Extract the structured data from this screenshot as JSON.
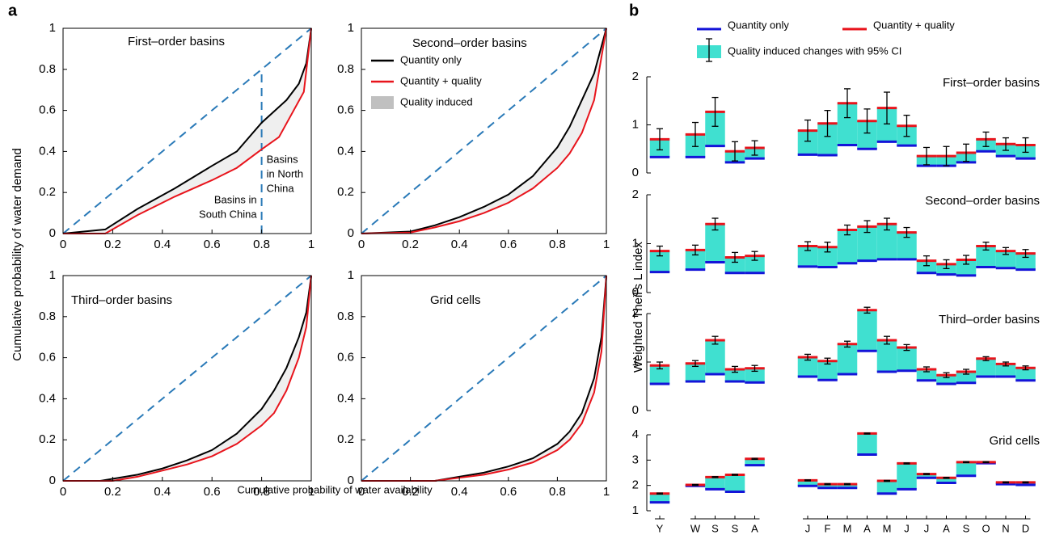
{
  "panel_a": {
    "label": "a",
    "xlabel": "Cumulative probability of water availability",
    "ylabel": "Cumulative probability of water demand"
  },
  "panel_b": {
    "label": "b",
    "ylabel": "Weighted Theil's L index",
    "categories": [
      "Y",
      "W",
      "S",
      "S",
      "A",
      "J",
      "F",
      "M",
      "A",
      "M",
      "J",
      "J",
      "A",
      "S",
      "O",
      "N",
      "D"
    ],
    "legend": [
      {
        "name": "Quantity only",
        "color": "#1414d8"
      },
      {
        "name": "Quantity + quality",
        "color": "#e8141c"
      },
      {
        "name": "Quality induced changes with 95% CI",
        "color": "#40e0d0"
      }
    ]
  },
  "chart_data": [
    {
      "type": "line",
      "title": "First–order basins",
      "xlim": [
        0,
        1
      ],
      "ylim": [
        0,
        1
      ],
      "xticks": [
        0,
        0.2,
        0.4,
        0.6,
        0.8,
        1
      ],
      "yticks": [
        0,
        0.2,
        0.4,
        0.6,
        0.8,
        1
      ],
      "diagonal": {
        "x": [
          0,
          1
        ],
        "values": [
          0,
          1
        ],
        "color": "#2a7ab8"
      },
      "series": [
        {
          "color": "#000000",
          "x": [
            0,
            0.17,
            0.3,
            0.45,
            0.6,
            0.7,
            0.8,
            0.9,
            0.95,
            0.98,
            1
          ],
          "values": [
            0,
            0.02,
            0.12,
            0.22,
            0.33,
            0.4,
            0.54,
            0.65,
            0.73,
            0.83,
            1
          ]
        },
        {
          "color": "#e8141c",
          "x": [
            0,
            0.17,
            0.3,
            0.45,
            0.6,
            0.7,
            0.8,
            0.87,
            0.92,
            0.97,
            1
          ],
          "values": [
            0,
            0,
            0.09,
            0.18,
            0.26,
            0.32,
            0.41,
            0.47,
            0.58,
            0.69,
            1
          ]
        }
      ],
      "shade_color": "#efefef",
      "marker_line": {
        "x": 0.8,
        "y": 0.8
      },
      "annotations": [
        {
          "lines": [
            "Basins in",
            "South China"
          ]
        },
        {
          "lines": [
            "Basins",
            "in North",
            "China"
          ]
        }
      ]
    },
    {
      "type": "line",
      "title": "Second–order basins",
      "xlim": [
        0,
        1
      ],
      "ylim": [
        0,
        1
      ],
      "xticks": [
        0,
        0.2,
        0.4,
        0.6,
        0.8,
        1
      ],
      "yticks": [
        0,
        0.2,
        0.4,
        0.6,
        0.8,
        1
      ],
      "diagonal": {
        "x": [
          0,
          1
        ],
        "values": [
          0,
          1
        ],
        "color": "#2a7ab8"
      },
      "series": [
        {
          "name": "Quantity only",
          "color": "#000000",
          "x": [
            0,
            0.2,
            0.3,
            0.4,
            0.5,
            0.6,
            0.7,
            0.8,
            0.85,
            0.9,
            0.95,
            1
          ],
          "values": [
            0,
            0.01,
            0.04,
            0.08,
            0.13,
            0.19,
            0.28,
            0.42,
            0.52,
            0.65,
            0.78,
            1
          ]
        },
        {
          "name": "Quantity + quality",
          "color": "#e8141c",
          "x": [
            0,
            0.2,
            0.3,
            0.4,
            0.5,
            0.6,
            0.7,
            0.8,
            0.85,
            0.9,
            0.95,
            1
          ],
          "values": [
            0,
            0.005,
            0.03,
            0.06,
            0.1,
            0.15,
            0.22,
            0.32,
            0.39,
            0.49,
            0.65,
            1
          ]
        }
      ],
      "shade_color": "#efefef",
      "shade_name": "Quality induced",
      "shade_legend_color": "#c0c0c0",
      "legend": true
    },
    {
      "type": "line",
      "title": "Third–order basins",
      "xlim": [
        0,
        1
      ],
      "ylim": [
        0,
        1
      ],
      "xticks": [
        0,
        0.2,
        0.4,
        0.6,
        0.8,
        1
      ],
      "yticks": [
        0,
        0.2,
        0.4,
        0.6,
        0.8,
        1
      ],
      "diagonal": {
        "x": [
          0,
          1
        ],
        "values": [
          0,
          1
        ],
        "color": "#2a7ab8"
      },
      "series": [
        {
          "color": "#000000",
          "x": [
            0,
            0.15,
            0.3,
            0.4,
            0.5,
            0.6,
            0.7,
            0.8,
            0.85,
            0.9,
            0.95,
            0.98,
            1
          ],
          "values": [
            0,
            0,
            0.03,
            0.06,
            0.1,
            0.15,
            0.23,
            0.35,
            0.44,
            0.55,
            0.7,
            0.82,
            1
          ]
        },
        {
          "color": "#e8141c",
          "x": [
            0,
            0.2,
            0.3,
            0.4,
            0.5,
            0.6,
            0.7,
            0.8,
            0.85,
            0.9,
            0.95,
            0.98,
            1
          ],
          "values": [
            0,
            0,
            0.02,
            0.05,
            0.08,
            0.12,
            0.18,
            0.27,
            0.33,
            0.44,
            0.6,
            0.75,
            1
          ]
        }
      ],
      "shade_color": "#efefef"
    },
    {
      "type": "line",
      "title": "Grid cells",
      "xlim": [
        0,
        1
      ],
      "ylim": [
        0,
        1
      ],
      "xticks": [
        0,
        0.2,
        0.4,
        0.6,
        0.8,
        1
      ],
      "yticks": [
        0,
        0.2,
        0.4,
        0.6,
        0.8,
        1
      ],
      "diagonal": {
        "x": [
          0,
          1
        ],
        "values": [
          0,
          1
        ],
        "color": "#2a7ab8"
      },
      "series": [
        {
          "color": "#000000",
          "x": [
            0,
            0.3,
            0.4,
            0.5,
            0.6,
            0.7,
            0.8,
            0.85,
            0.9,
            0.95,
            0.98,
            1
          ],
          "values": [
            0,
            0,
            0.02,
            0.04,
            0.07,
            0.11,
            0.18,
            0.24,
            0.33,
            0.5,
            0.7,
            1
          ]
        },
        {
          "color": "#e8141c",
          "x": [
            0,
            0.3,
            0.4,
            0.5,
            0.6,
            0.7,
            0.8,
            0.85,
            0.9,
            0.95,
            0.98,
            1
          ],
          "values": [
            0,
            0,
            0.015,
            0.03,
            0.055,
            0.09,
            0.15,
            0.2,
            0.28,
            0.43,
            0.63,
            1
          ]
        }
      ],
      "shade_color": "#efefef"
    },
    {
      "type": "bar",
      "title": "First–order basins",
      "ylim": [
        0,
        2
      ],
      "yticks": [
        0,
        1,
        2
      ],
      "series": [
        {
          "values": [
            0.33,
            0.33,
            0.56,
            0.22,
            0.3,
            0.38,
            0.37,
            0.58,
            0.5,
            0.65,
            0.57,
            0.15,
            0.15,
            0.22,
            0.45,
            0.35,
            0.3
          ]
        },
        {
          "values": [
            0.7,
            0.8,
            1.27,
            0.45,
            0.52,
            0.88,
            1.03,
            1.45,
            1.08,
            1.35,
            0.98,
            0.35,
            0.35,
            0.42,
            0.7,
            0.6,
            0.58
          ],
          "errors": [
            0.22,
            0.25,
            0.3,
            0.2,
            0.15,
            0.22,
            0.27,
            0.3,
            0.25,
            0.33,
            0.22,
            0.18,
            0.2,
            0.18,
            0.15,
            0.13,
            0.15
          ]
        }
      ]
    },
    {
      "type": "bar",
      "title": "Second–order basins",
      "ylim": [
        0,
        2
      ],
      "yticks": [
        0,
        1,
        2
      ],
      "series": [
        {
          "values": [
            0.42,
            0.47,
            0.62,
            0.4,
            0.4,
            0.53,
            0.52,
            0.6,
            0.65,
            0.68,
            0.68,
            0.4,
            0.37,
            0.35,
            0.52,
            0.5,
            0.47
          ]
        },
        {
          "values": [
            0.85,
            0.87,
            1.4,
            0.72,
            0.75,
            0.95,
            0.93,
            1.28,
            1.35,
            1.4,
            1.23,
            0.65,
            0.58,
            0.67,
            0.95,
            0.85,
            0.8
          ],
          "errors": [
            0.1,
            0.1,
            0.12,
            0.1,
            0.09,
            0.09,
            0.1,
            0.1,
            0.12,
            0.12,
            0.1,
            0.1,
            0.09,
            0.09,
            0.08,
            0.07,
            0.08
          ]
        }
      ]
    },
    {
      "type": "bar",
      "title": "Third–order basins",
      "ylim": [
        0,
        2
      ],
      "yticks": [
        0,
        1,
        2
      ],
      "series": [
        {
          "values": [
            0.55,
            0.6,
            0.75,
            0.6,
            0.58,
            0.7,
            0.63,
            0.75,
            1.23,
            0.8,
            0.82,
            0.62,
            0.55,
            0.57,
            0.7,
            0.7,
            0.62
          ]
        },
        {
          "values": [
            0.93,
            0.97,
            1.45,
            0.85,
            0.87,
            1.1,
            1.02,
            1.37,
            2.07,
            1.45,
            1.3,
            0.85,
            0.73,
            0.8,
            1.07,
            0.96,
            0.88
          ],
          "errors": [
            0.07,
            0.06,
            0.08,
            0.06,
            0.06,
            0.06,
            0.06,
            0.06,
            0.06,
            0.08,
            0.06,
            0.05,
            0.05,
            0.05,
            0.04,
            0.04,
            0.04
          ]
        }
      ]
    },
    {
      "type": "bar",
      "title": "Grid cells",
      "ylim": [
        1,
        4
      ],
      "yticks": [
        1,
        2,
        3,
        4
      ],
      "series": [
        {
          "values": [
            1.33,
            1.98,
            1.85,
            1.75,
            2.8,
            1.98,
            1.9,
            1.9,
            3.22,
            1.68,
            1.85,
            2.3,
            2.1,
            2.38,
            2.88,
            2.05,
            2.02
          ]
        },
        {
          "values": [
            1.68,
            2.02,
            2.33,
            2.42,
            3.05,
            2.2,
            2.05,
            2.05,
            4.05,
            2.18,
            2.87,
            2.45,
            2.3,
            2.92,
            2.92,
            2.12,
            2.12
          ],
          "errors": [
            0.02,
            0.02,
            0.02,
            0.02,
            0.02,
            0.02,
            0.02,
            0.02,
            0.02,
            0.02,
            0.02,
            0.02,
            0.02,
            0.02,
            0.02,
            0.02,
            0.02
          ]
        }
      ]
    }
  ]
}
